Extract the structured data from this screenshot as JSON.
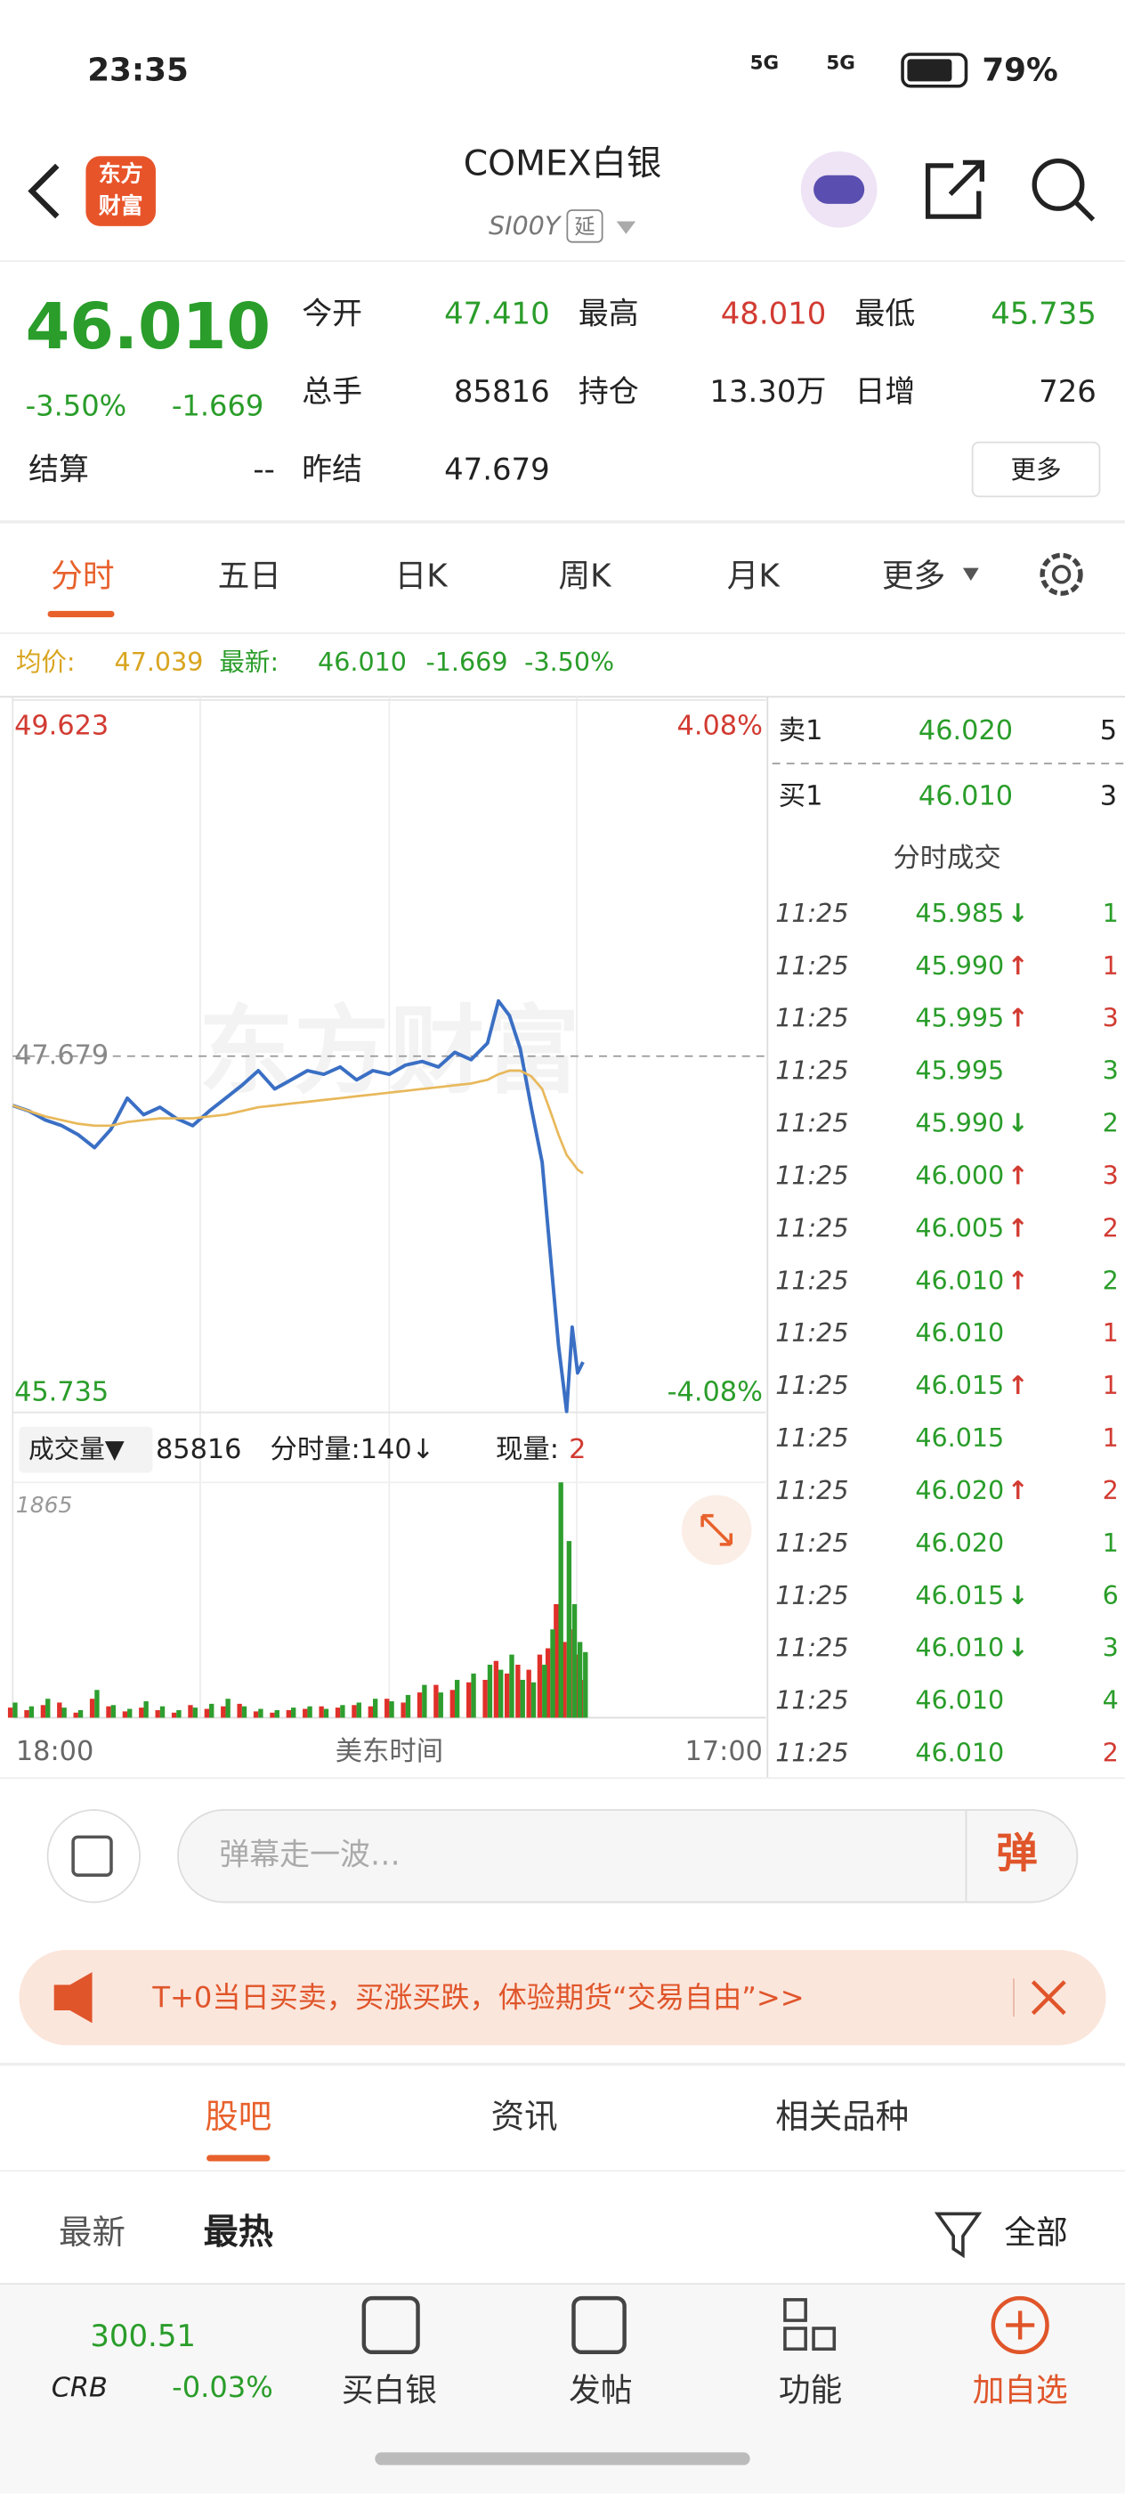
{
  "status_bar": {
    "time": "23:35",
    "net1": "5G",
    "net2": "5G",
    "battery": "79%"
  },
  "header": {
    "logo_top": "东方",
    "logo_bottom": "财富",
    "title": "COMEX白银",
    "code": "SI00Y",
    "tag": "延"
  },
  "quote": {
    "price": "46.010",
    "change_pct": "-3.50%",
    "change": "-1.669",
    "fields": [
      {
        "label": "今开",
        "value": "47.410"
      },
      {
        "label": "最高",
        "value": "48.010"
      },
      {
        "label": "最低",
        "value": "45.735"
      },
      {
        "label": "总手",
        "value": "85816"
      },
      {
        "label": "持仓",
        "value": "13.30万"
      },
      {
        "label": "日增",
        "value": "726"
      },
      {
        "label": "结算",
        "value": "--"
      },
      {
        "label": "昨结",
        "value": "47.679"
      }
    ],
    "more": "更多"
  },
  "tabs": [
    "分时",
    "五日",
    "日K",
    "周K",
    "月K",
    "更多"
  ],
  "info": {
    "avg_label": "均价:",
    "avg": "47.039",
    "latest_label": "最新:",
    "latest": "46.010",
    "change": "-1.669",
    "pct": "-3.50%"
  },
  "watermark": "东方财富",
  "chart_data": [
    {
      "type": "line",
      "xlim": [
        "18:00",
        "17:00"
      ],
      "x": [
        "18:00",
        "18:30",
        "19:00",
        "19:30",
        "20:00",
        "20:30",
        "21:00",
        "21:30",
        "22:00",
        "22:30",
        "23:00",
        "23:30",
        "00:00",
        "00:30",
        "01:00",
        "01:30",
        "02:00",
        "02:30",
        "03:00",
        "03:30",
        "04:00",
        "04:30",
        "05:00",
        "05:30",
        "06:00",
        "06:30",
        "07:00",
        "07:30",
        "08:00",
        "08:30",
        "08:50",
        "09:10",
        "09:30",
        "09:50",
        "10:10",
        "10:25",
        "10:40",
        "10:55",
        "11:05",
        "11:15",
        "11:25"
      ],
      "series": [
        {
          "color": "#3a6fc4",
          "values": [
            47.41,
            47.38,
            47.33,
            47.3,
            47.25,
            47.18,
            47.28,
            47.45,
            47.36,
            47.4,
            47.34,
            47.3,
            47.38,
            47.45,
            47.52,
            47.6,
            47.5,
            47.55,
            47.6,
            47.58,
            47.62,
            47.55,
            47.6,
            47.58,
            47.63,
            47.65,
            47.62,
            47.7,
            47.66,
            47.75,
            47.98,
            47.9,
            47.72,
            47.4,
            47.1,
            46.6,
            46.1,
            45.74,
            46.2,
            45.95,
            46.01
          ]
        },
        {
          "color": "#e8b85a",
          "values": [
            47.41,
            47.38,
            47.35,
            47.33,
            47.31,
            47.3,
            47.3,
            47.32,
            47.33,
            47.34,
            47.34,
            47.34,
            47.35,
            47.36,
            47.38,
            47.4,
            47.41,
            47.42,
            47.43,
            47.44,
            47.45,
            47.46,
            47.47,
            47.48,
            47.49,
            47.5,
            47.51,
            47.52,
            47.53,
            47.55,
            47.58,
            47.6,
            47.6,
            47.57,
            47.5,
            47.38,
            47.25,
            47.14,
            47.1,
            47.06,
            47.039
          ]
        }
      ],
      "ylim": [
        45.735,
        49.623
      ],
      "yticks": [
        49.623,
        47.679,
        45.735
      ],
      "y2lim": [
        -4.08,
        4.08
      ],
      "y2ticks": [
        {
          "value": 4.08,
          "label": "4.08%"
        },
        {
          "value": -4.08,
          "label": "-4.08%"
        }
      ],
      "y2color_up": "#d23b32",
      "y2color_down": "#2a9d2a"
    },
    {
      "type": "bar",
      "xlim": [
        "18:00",
        "17:00"
      ],
      "x_label": "美东时间",
      "x": [
        "18:00",
        "18:30",
        "19:00",
        "19:30",
        "20:00",
        "20:30",
        "21:00",
        "21:30",
        "22:00",
        "22:30",
        "23:00",
        "23:30",
        "00:00",
        "00:30",
        "01:00",
        "01:30",
        "02:00",
        "02:30",
        "03:00",
        "03:30",
        "04:00",
        "04:30",
        "05:00",
        "05:30",
        "06:00",
        "06:30",
        "07:00",
        "07:30",
        "08:00",
        "08:30",
        "08:50",
        "09:10",
        "09:30",
        "09:50",
        "10:10",
        "10:25",
        "10:40",
        "10:55",
        "11:05",
        "11:15",
        "11:25"
      ],
      "series": [
        {
          "color": "#e0302a",
          "values": [
            80,
            60,
            100,
            120,
            40,
            150,
            90,
            50,
            80,
            60,
            40,
            100,
            70,
            90,
            110,
            50,
            40,
            60,
            70,
            90,
            80,
            100,
            90,
            150,
            120,
            200,
            260,
            220,
            280,
            300,
            450,
            350,
            420,
            380,
            500,
            550,
            900,
            600,
            700,
            500,
            300
          ]
        },
        {
          "color": "#2e9e2e",
          "values": [
            120,
            90,
            150,
            80,
            60,
            220,
            100,
            70,
            130,
            90,
            60,
            80,
            110,
            150,
            90,
            70,
            60,
            80,
            90,
            70,
            100,
            120,
            150,
            130,
            180,
            260,
            200,
            300,
            350,
            420,
            380,
            500,
            300,
            280,
            420,
            700,
            1865,
            1400,
            900,
            600,
            520
          ]
        }
      ],
      "ylim": [
        0,
        1865
      ],
      "yticks": [
        1865
      ]
    }
  ],
  "volume_row": {
    "label": "成交量▼",
    "total": "85816",
    "seg": "分时量:140↓",
    "now_label": "现量:",
    "now": "2"
  },
  "order_book": [
    {
      "label": "卖1",
      "price": "46.020",
      "qty": "5"
    },
    {
      "label": "买1",
      "price": "46.010",
      "qty": "3"
    }
  ],
  "trades_title": "分时成交",
  "trades": [
    {
      "time": "11:25",
      "price": "45.985",
      "arrow": "↓",
      "qty": "1",
      "color": "#2a9d2a"
    },
    {
      "time": "11:25",
      "price": "45.990",
      "arrow": "↑",
      "qty": "1",
      "color": "#d23b32"
    },
    {
      "time": "11:25",
      "price": "45.995",
      "arrow": "↑",
      "qty": "3",
      "color": "#d23b32"
    },
    {
      "time": "11:25",
      "price": "45.995",
      "qty": "3",
      "color": "#2a9d2a"
    },
    {
      "time": "11:25",
      "price": "45.990",
      "arrow": "↓",
      "qty": "2",
      "color": "#2a9d2a"
    },
    {
      "time": "11:25",
      "price": "46.000",
      "arrow": "↑",
      "qty": "3",
      "color": "#d23b32"
    },
    {
      "time": "11:25",
      "price": "46.005",
      "arrow": "↑",
      "qty": "2",
      "color": "#d23b32"
    },
    {
      "time": "11:25",
      "price": "46.010",
      "arrow": "↑",
      "qty": "2",
      "color": "#2a9d2a"
    },
    {
      "time": "11:25",
      "price": "46.010",
      "qty": "1",
      "color": "#d23b32"
    },
    {
      "time": "11:25",
      "price": "46.015",
      "arrow": "↑",
      "qty": "1",
      "color": "#d23b32"
    },
    {
      "time": "11:25",
      "price": "46.015",
      "qty": "1",
      "color": "#d23b32"
    },
    {
      "time": "11:25",
      "price": "46.020",
      "arrow": "↑",
      "qty": "2",
      "color": "#d23b32"
    },
    {
      "time": "11:25",
      "price": "46.020",
      "qty": "1",
      "color": "#2a9d2a"
    },
    {
      "time": "11:25",
      "price": "46.015",
      "arrow": "↓",
      "qty": "6",
      "color": "#2a9d2a"
    },
    {
      "time": "11:25",
      "price": "46.010",
      "arrow": "↓",
      "qty": "3",
      "color": "#2a9d2a"
    },
    {
      "time": "11:25",
      "price": "46.010",
      "qty": "4",
      "color": "#2a9d2a"
    },
    {
      "time": "11:25",
      "price": "46.010",
      "qty": "2",
      "color": "#d23b32"
    }
  ],
  "comment": {
    "placeholder": "弹幕走一波…",
    "button": "弹"
  },
  "banner": {
    "text": "T+0当日买卖，买涨买跌，体验期货“交易自由”>>"
  },
  "section_tabs": [
    "股吧",
    "资讯",
    "相关品种"
  ],
  "sub_tabs": {
    "latest": "最新",
    "hot": "最热",
    "filter": "全部"
  },
  "bottom_bar": {
    "index_value": "300.51",
    "index_name": "CRB",
    "index_change": "-0.03%",
    "items": [
      "买白银",
      "发帖",
      "功能",
      "加自选"
    ]
  }
}
